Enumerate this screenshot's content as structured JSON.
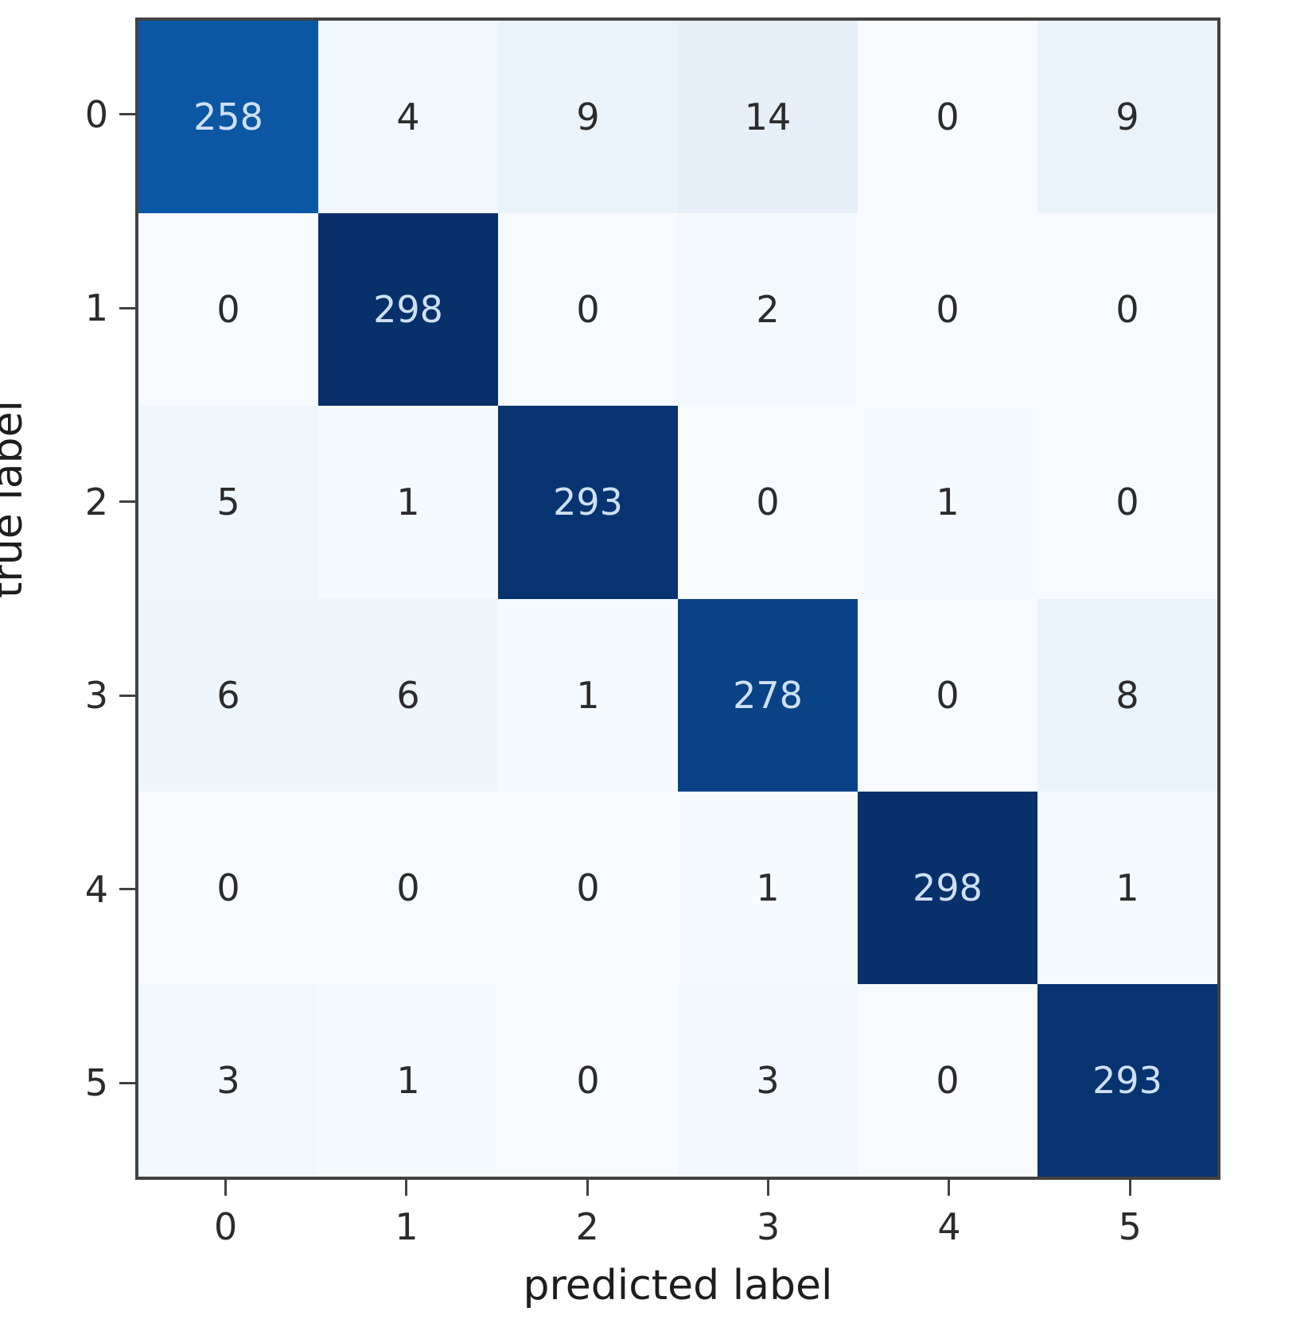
{
  "chart_data": {
    "type": "heatmap",
    "title": "",
    "xlabel": "predicted label",
    "ylabel": "true label",
    "x_ticklabels": [
      "0",
      "1",
      "2",
      "3",
      "4",
      "5"
    ],
    "y_ticklabels": [
      "0",
      "1",
      "2",
      "3",
      "4",
      "5"
    ],
    "matrix": [
      [
        258,
        4,
        9,
        14,
        0,
        9
      ],
      [
        0,
        298,
        0,
        2,
        0,
        0
      ],
      [
        5,
        1,
        293,
        0,
        1,
        0
      ],
      [
        6,
        6,
        1,
        278,
        0,
        8
      ],
      [
        0,
        0,
        0,
        1,
        298,
        1
      ],
      [
        3,
        1,
        0,
        3,
        0,
        293
      ]
    ],
    "colormap": "Blues",
    "value_range": [
      0,
      298
    ],
    "legend_position": "none",
    "grid": false,
    "cell_colors": [
      [
        "#0b57a3",
        "#f1f7fc",
        "#eaf2fa",
        "#e6eff8",
        "#f7fbff",
        "#eaf2fa"
      ],
      [
        "#f7fbff",
        "#08306b",
        "#f7fbff",
        "#f4f9fd",
        "#f7fbff",
        "#f7fbff"
      ],
      [
        "#eff6fc",
        "#f5fafe",
        "#083371",
        "#f7fbff",
        "#f5fafe",
        "#f7fbff"
      ],
      [
        "#eef5fb",
        "#eef5fb",
        "#f5fafe",
        "#094286",
        "#f7fbff",
        "#ebf3fa"
      ],
      [
        "#f7fbff",
        "#f7fbff",
        "#f7fbff",
        "#f5fafe",
        "#08306b",
        "#f5fafe"
      ],
      [
        "#f2f8fd",
        "#f5fafe",
        "#f7fbff",
        "#f2f8fd",
        "#f7fbff",
        "#083371"
      ]
    ],
    "colors": {
      "diagonal_max": "#08306b",
      "background_min": "#f7fbff",
      "cell_text_light": "#cfe0f1",
      "cell_text_dark": "#2b2b2b",
      "spine": "#424242"
    }
  }
}
